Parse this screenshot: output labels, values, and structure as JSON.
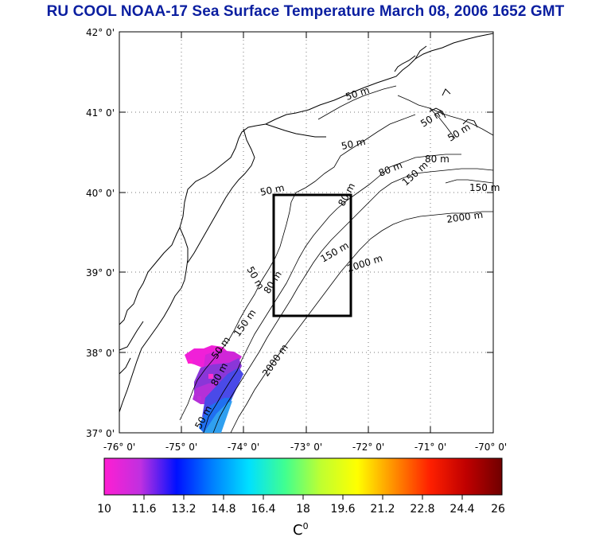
{
  "title": "RU COOL  NOAA-17 Sea Surface Temperature March 08, 2006 1652 GMT",
  "map": {
    "lat_labels": [
      "42° 0'",
      "41° 0'",
      "40° 0'",
      "39° 0'",
      "38° 0'",
      "37° 0'"
    ],
    "lon_labels": [
      "-76° 0'",
      "-75° 0'",
      "-74° 0'",
      "-73° 0'",
      "-72° 0'",
      "-71° 0'",
      "-70° 0'"
    ],
    "lon_range": [
      -76,
      -70
    ],
    "lat_range": [
      37,
      42
    ],
    "study_box": {
      "lon": [
        -73.45,
        -72.0
      ],
      "lat": [
        38.5,
        40.0
      ]
    },
    "contour_labels": [
      "50 m",
      "50 m",
      "50 m",
      "50 m",
      "80 m",
      "80 m",
      "150 m",
      "150 m",
      "2000 m",
      "80 m",
      "150 m",
      "2000 m",
      "50 m",
      "50 m",
      "80 m",
      "150 m",
      "50 m",
      "80 m",
      "2000 m",
      "50 m"
    ]
  },
  "colorbar": {
    "labels": [
      "10",
      "11.6",
      "13.2",
      "14.8",
      "16.4",
      "18",
      "19.6",
      "21.2",
      "22.8",
      "24.4",
      "26"
    ],
    "unit": "C",
    "unit_sup": "0",
    "min": 10,
    "max": 26,
    "colors": [
      "#ff1ed2",
      "#c030e0",
      "#0010ff",
      "#0080ff",
      "#00e0ff",
      "#40ff90",
      "#c0ff30",
      "#ffff00",
      "#ff9000",
      "#ff2000",
      "#c00000",
      "#700000"
    ]
  }
}
